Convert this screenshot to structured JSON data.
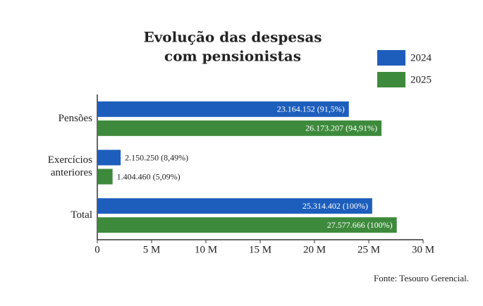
{
  "chart_data": {
    "type": "barh",
    "title": [
      "Evolução das despesas",
      "com pensionistas"
    ],
    "categories": [
      "Pensões",
      "Exercícios anteriores",
      "Total"
    ],
    "series": [
      {
        "name": "2024",
        "color": "#1d5ebd",
        "values": [
          23164152,
          2150250,
          25314402
        ],
        "value_labels": [
          "23.164.152 (91,5%)",
          "2.150.250 (8,49%)",
          "25.314.402 (100%)"
        ]
      },
      {
        "name": "2025",
        "color": "#3e8a3c",
        "values": [
          26173207,
          1404460,
          27577666
        ],
        "value_labels": [
          "26.173.207 (94,91%)",
          "1.404.460 (5,09%)",
          "27.577.666 (100%)"
        ]
      }
    ],
    "xlim": [
      0,
      30000000
    ],
    "xticks": [
      0,
      {
        "value": 5000000,
        "label": "5 M"
      },
      {
        "value": 10000000,
        "label": "10 M"
      },
      {
        "value": 15000000,
        "label": "15 M"
      },
      {
        "value": 20000000,
        "label": "20 M"
      },
      {
        "value": 25000000,
        "label": "25 M"
      },
      {
        "value": 30000000,
        "label": "30 M"
      }
    ],
    "source": "Fonte: Tesouro Gerencial."
  }
}
